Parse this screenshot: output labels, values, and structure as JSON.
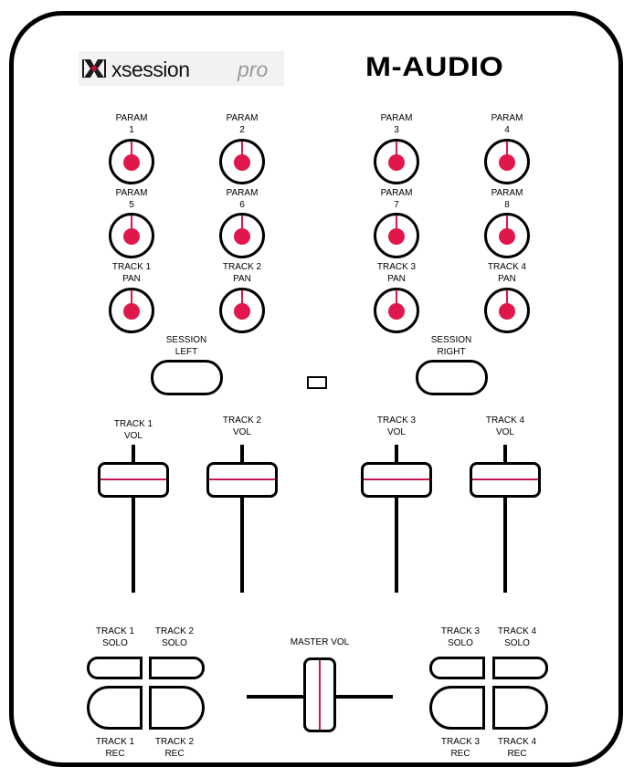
{
  "brand": {
    "product_logo_text": "xsession pro",
    "maker_logo_text": "M-AUDIO",
    "accent_color": "#e0174a",
    "fader_line_color": "#c2185b"
  },
  "knobs": [
    {
      "name": "param-1",
      "line1": "PARAM",
      "line2": "1"
    },
    {
      "name": "param-2",
      "line1": "PARAM",
      "line2": "2"
    },
    {
      "name": "param-3",
      "line1": "PARAM",
      "line2": "3"
    },
    {
      "name": "param-4",
      "line1": "PARAM",
      "line2": "4"
    },
    {
      "name": "param-5",
      "line1": "PARAM",
      "line2": "5"
    },
    {
      "name": "param-6",
      "line1": "PARAM",
      "line2": "6"
    },
    {
      "name": "param-7",
      "line1": "PARAM",
      "line2": "7"
    },
    {
      "name": "param-8",
      "line1": "PARAM",
      "line2": "8"
    },
    {
      "name": "track-1-pan",
      "line1": "TRACK 1",
      "line2": "PAN"
    },
    {
      "name": "track-2-pan",
      "line1": "TRACK 2",
      "line2": "PAN"
    },
    {
      "name": "track-3-pan",
      "line1": "TRACK 3",
      "line2": "PAN"
    },
    {
      "name": "track-4-pan",
      "line1": "TRACK 4",
      "line2": "PAN"
    }
  ],
  "session": {
    "left": {
      "line1": "SESSION",
      "line2": "LEFT"
    },
    "right": {
      "line1": "SESSION",
      "line2": "RIGHT"
    }
  },
  "faders": [
    {
      "line1": "TRACK 1",
      "line2": "VOL"
    },
    {
      "line1": "TRACK 2",
      "line2": "VOL"
    },
    {
      "line1": "TRACK 3",
      "line2": "VOL"
    },
    {
      "line1": "TRACK 4",
      "line2": "VOL"
    }
  ],
  "solo": [
    {
      "line1": "TRACK 1",
      "line2": "SOLO"
    },
    {
      "line1": "TRACK 2",
      "line2": "SOLO"
    },
    {
      "line1": "TRACK 3",
      "line2": "SOLO"
    },
    {
      "line1": "TRACK 4",
      "line2": "SOLO"
    }
  ],
  "rec": [
    {
      "line1": "TRACK 1",
      "line2": "REC"
    },
    {
      "line1": "TRACK 2",
      "line2": "REC"
    },
    {
      "line1": "TRACK 3",
      "line2": "REC"
    },
    {
      "line1": "TRACK 4",
      "line2": "REC"
    }
  ],
  "master": {
    "label": "MASTER VOL"
  }
}
